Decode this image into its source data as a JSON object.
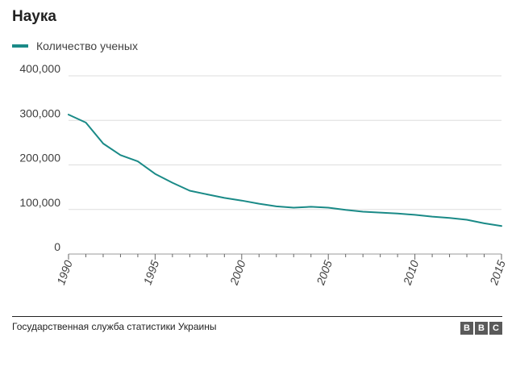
{
  "chart_data": {
    "type": "line",
    "title": "Наука",
    "xlabel": "",
    "ylabel": "",
    "ylim": [
      0,
      400000
    ],
    "xlim": [
      1990,
      2015
    ],
    "yticks": [
      0,
      100000,
      200000,
      300000,
      400000
    ],
    "ytick_labels": [
      "0",
      "100,000",
      "200,000",
      "300,000",
      "400,000"
    ],
    "xticks": [
      1990,
      1995,
      2000,
      2005,
      2010,
      2015
    ],
    "xtick_labels": [
      "1990",
      "1995",
      "2000",
      "2005",
      "2010",
      "2015"
    ],
    "grid": true,
    "legend": "top-left",
    "series": [
      {
        "name": "Количество ученых",
        "color": "#1a8a87",
        "x": [
          1990,
          1991,
          1992,
          1993,
          1994,
          1995,
          1996,
          1997,
          1998,
          1999,
          2000,
          2001,
          2002,
          2003,
          2004,
          2005,
          2006,
          2007,
          2008,
          2009,
          2010,
          2011,
          2012,
          2013,
          2014,
          2015
        ],
        "values": [
          313000,
          295000,
          248000,
          222000,
          208000,
          180000,
          160000,
          142000,
          134000,
          126000,
          120000,
          113000,
          107000,
          104000,
          106000,
          104000,
          99000,
          95000,
          93000,
          91000,
          88000,
          84000,
          81000,
          77000,
          69000,
          63000
        ]
      }
    ]
  },
  "footer": {
    "source": "Государственная служба статистики Украины",
    "logo_letters": [
      "B",
      "B",
      "C"
    ]
  }
}
